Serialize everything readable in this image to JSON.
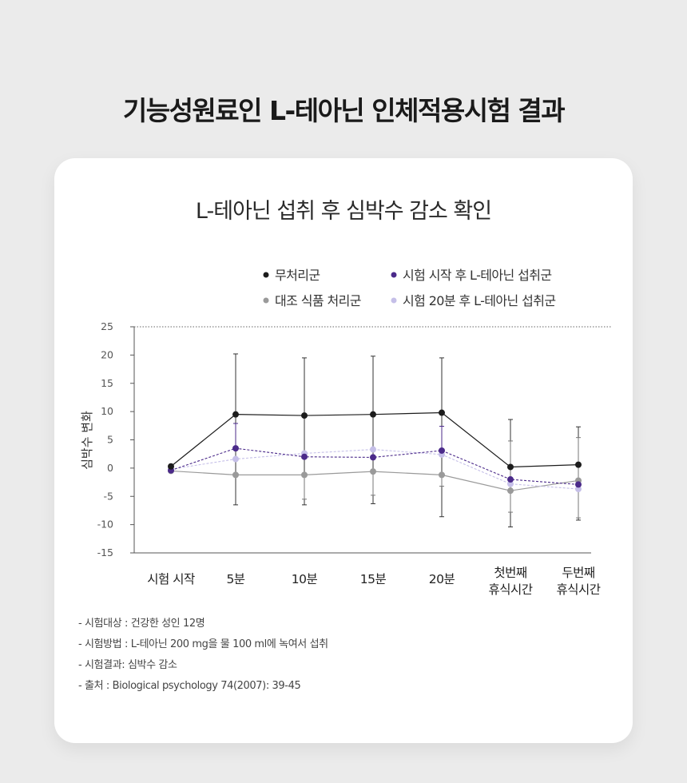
{
  "page": {
    "title": "기능성원료인 L-테아닌 인체적용시험 결과"
  },
  "chart_data": {
    "type": "line",
    "title": "L-테아닌 섭취 후 심박수 감소 확인",
    "ylabel": "심박수 변화",
    "xlabel": "",
    "ylim": [
      -15,
      25
    ],
    "yticks": [
      "25",
      "20",
      "15",
      "10",
      "5",
      "0",
      "-5",
      "-10",
      "-15"
    ],
    "ytick_values": [
      25,
      20,
      15,
      10,
      5,
      0,
      -5,
      -10,
      -15
    ],
    "categories": [
      "시험 시작",
      "5분",
      "10분",
      "15분",
      "20분",
      "첫번째\n휴식시간",
      "두번째\n휴식시간"
    ],
    "legend_position": "top-right",
    "grid": false,
    "series": [
      {
        "name": "무처리군",
        "color": "#1c1c1c",
        "dash": false,
        "values": [
          0.3,
          9.5,
          9.3,
          9.5,
          9.8,
          0.2,
          0.6
        ],
        "err_upper": [
          null,
          20.2,
          19.5,
          19.8,
          19.5,
          8.6,
          7.3
        ],
        "err_lower": [
          null,
          -6.5,
          -6.5,
          -6.3,
          -8.6,
          -10.4,
          -9.2
        ]
      },
      {
        "name": "대조 식품 처리군",
        "color": "#9a9a9a",
        "dash": false,
        "values": [
          -0.5,
          -1.2,
          -1.2,
          -0.6,
          -1.2,
          -4.0,
          -2.2
        ],
        "err_upper": [
          null,
          null,
          null,
          null,
          null,
          4.8,
          5.4
        ],
        "err_lower": [
          null,
          null,
          -5.5,
          -4.8,
          -3.2,
          -7.8,
          -8.8
        ]
      },
      {
        "name": "시험 시작 후 L-테아닌 섭취군",
        "color": "#4b2a8a",
        "dash": true,
        "values": [
          -0.4,
          3.5,
          2.0,
          1.9,
          3.1,
          -2.0,
          -2.9
        ],
        "err_upper": [
          null,
          7.9,
          null,
          null,
          7.4,
          null,
          null
        ],
        "err_lower": [
          null,
          null,
          null,
          null,
          null,
          null,
          null
        ]
      },
      {
        "name": "시험 20분 후 L-테아닌 섭취군",
        "color": "#c5bfe8",
        "dash": true,
        "values": [
          -0.2,
          1.6,
          2.6,
          3.3,
          2.4,
          -2.8,
          -3.7
        ],
        "err_upper": [
          null,
          null,
          null,
          null,
          null,
          null,
          null
        ],
        "err_lower": [
          null,
          null,
          null,
          null,
          null,
          null,
          null
        ]
      }
    ]
  },
  "notes": [
    "- 시험대상 : 건강한 성인 12명",
    "- 시험방법 : L-테아닌 200 mg을 물 100 ml에 녹여서 섭취",
    "- 시험결과: 심박수 감소",
    "- 출처 : Biological psychology 74(2007): 39-45"
  ]
}
